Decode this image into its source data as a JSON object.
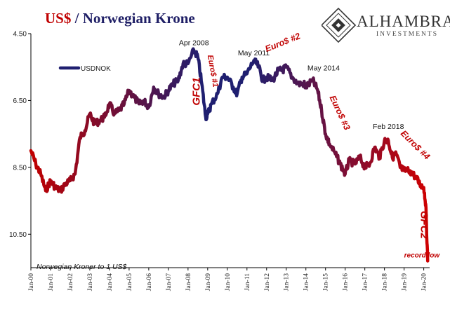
{
  "title": {
    "part1": "US$",
    "separator": " / ",
    "part2": "Norwegian Krone"
  },
  "logo": {
    "name": "ALHAMBRA",
    "sub": "INVESTMENTS",
    "icon": "alhambra-diamond-logo"
  },
  "colors": {
    "early": "#c00000",
    "peak": "#1f1f70",
    "late": "#d00000",
    "red_text": "#c00000"
  },
  "chart_data": {
    "type": "line",
    "ylabel": "",
    "xlabel": "",
    "y_inverted": true,
    "ylim": [
      4.5,
      11.5
    ],
    "y_ticks": [
      {
        "value": 4.5,
        "label": "4.50"
      },
      {
        "value": 6.5,
        "label": "6.50"
      },
      {
        "value": 8.5,
        "label": "8.50"
      },
      {
        "value": 10.5,
        "label": "10.50"
      }
    ],
    "xlim": [
      2000.0,
      2020.3
    ],
    "x_ticks": [
      {
        "value": 2000,
        "label": "Jan-00"
      },
      {
        "value": 2001,
        "label": "Jan-01"
      },
      {
        "value": 2002,
        "label": "Jan-02"
      },
      {
        "value": 2003,
        "label": "Jan-03"
      },
      {
        "value": 2004,
        "label": "Jan-04"
      },
      {
        "value": 2005,
        "label": "Jan-05"
      },
      {
        "value": 2006,
        "label": "Jan-06"
      },
      {
        "value": 2007,
        "label": "Jan-07"
      },
      {
        "value": 2008,
        "label": "Jan-08"
      },
      {
        "value": 2009,
        "label": "Jan-09"
      },
      {
        "value": 2010,
        "label": "Jan-10"
      },
      {
        "value": 2011,
        "label": "Jan-11"
      },
      {
        "value": 2012,
        "label": "Jan-12"
      },
      {
        "value": 2013,
        "label": "Jan-13"
      },
      {
        "value": 2014,
        "label": "Jan-14"
      },
      {
        "value": 2015,
        "label": "Jan-15"
      },
      {
        "value": 2016,
        "label": "Jan-16"
      },
      {
        "value": 2017,
        "label": "Jan-17"
      },
      {
        "value": 2018,
        "label": "Jan-18"
      },
      {
        "value": 2019,
        "label": "Jan-19"
      },
      {
        "value": 2020,
        "label": "Jan-20"
      }
    ],
    "grid": false,
    "legend": {
      "label": "USDNOK",
      "placement": "top-left"
    },
    "note": "Norwegian Kroner to 1 US$",
    "series": [
      {
        "name": "USDNOK",
        "points": [
          [
            2000.0,
            8.0
          ],
          [
            2000.25,
            8.4
          ],
          [
            2000.5,
            8.7
          ],
          [
            2000.75,
            9.2
          ],
          [
            2001.0,
            8.9
          ],
          [
            2001.25,
            9.1
          ],
          [
            2001.5,
            9.2
          ],
          [
            2001.75,
            9.0
          ],
          [
            2002.0,
            8.9
          ],
          [
            2002.25,
            8.7
          ],
          [
            2002.5,
            7.6
          ],
          [
            2002.75,
            7.4
          ],
          [
            2003.0,
            6.9
          ],
          [
            2003.25,
            7.2
          ],
          [
            2003.5,
            7.1
          ],
          [
            2003.75,
            7.0
          ],
          [
            2004.0,
            6.6
          ],
          [
            2004.25,
            6.9
          ],
          [
            2004.5,
            6.8
          ],
          [
            2004.75,
            6.6
          ],
          [
            2005.0,
            6.2
          ],
          [
            2005.25,
            6.4
          ],
          [
            2005.5,
            6.6
          ],
          [
            2005.75,
            6.5
          ],
          [
            2006.0,
            6.7
          ],
          [
            2006.25,
            6.1
          ],
          [
            2006.5,
            6.3
          ],
          [
            2006.75,
            6.4
          ],
          [
            2007.0,
            6.2
          ],
          [
            2007.25,
            6.0
          ],
          [
            2007.5,
            5.9
          ],
          [
            2007.75,
            5.4
          ],
          [
            2008.0,
            5.4
          ],
          [
            2008.3,
            5.0
          ],
          [
            2008.5,
            5.2
          ],
          [
            2008.7,
            6.0
          ],
          [
            2008.9,
            7.0
          ],
          [
            2009.0,
            6.9
          ],
          [
            2009.2,
            6.6
          ],
          [
            2009.5,
            6.3
          ],
          [
            2009.75,
            5.8
          ],
          [
            2010.0,
            5.8
          ],
          [
            2010.3,
            6.1
          ],
          [
            2010.5,
            6.3
          ],
          [
            2010.75,
            5.8
          ],
          [
            2011.0,
            5.7
          ],
          [
            2011.35,
            5.3
          ],
          [
            2011.6,
            5.5
          ],
          [
            2011.8,
            5.9
          ],
          [
            2012.0,
            5.8
          ],
          [
            2012.3,
            5.9
          ],
          [
            2012.6,
            5.6
          ],
          [
            2012.8,
            5.6
          ],
          [
            2013.0,
            5.5
          ],
          [
            2013.3,
            5.8
          ],
          [
            2013.6,
            6.0
          ],
          [
            2013.9,
            6.0
          ],
          [
            2014.0,
            6.1
          ],
          [
            2014.35,
            5.9
          ],
          [
            2014.6,
            6.2
          ],
          [
            2014.8,
            6.8
          ],
          [
            2015.0,
            7.5
          ],
          [
            2015.2,
            7.8
          ],
          [
            2015.5,
            8.1
          ],
          [
            2015.75,
            8.4
          ],
          [
            2016.0,
            8.7
          ],
          [
            2016.2,
            8.3
          ],
          [
            2016.5,
            8.4
          ],
          [
            2016.75,
            8.2
          ],
          [
            2017.0,
            8.5
          ],
          [
            2017.25,
            8.4
          ],
          [
            2017.5,
            7.9
          ],
          [
            2017.75,
            8.2
          ],
          [
            2018.0,
            7.7
          ],
          [
            2018.2,
            7.7
          ],
          [
            2018.4,
            8.2
          ],
          [
            2018.6,
            8.1
          ],
          [
            2018.8,
            8.5
          ],
          [
            2019.0,
            8.6
          ],
          [
            2019.3,
            8.6
          ],
          [
            2019.6,
            8.8
          ],
          [
            2019.8,
            9.0
          ],
          [
            2020.0,
            9.1
          ],
          [
            2020.1,
            9.6
          ],
          [
            2020.2,
            11.3
          ]
        ]
      }
    ],
    "annotations_black": [
      {
        "text": "Apr 2008",
        "x": 2008.3,
        "y": 4.85
      },
      {
        "text": "May 2011",
        "x": 2011.35,
        "y": 5.15
      },
      {
        "text": "May 2014",
        "x": 2014.9,
        "y": 5.6
      },
      {
        "text": "Feb 2018",
        "x": 2018.2,
        "y": 7.35
      }
    ],
    "annotations_red": [
      {
        "text": "Euro$ #1",
        "x": 2009.0,
        "y": 5.15,
        "rotate": 80,
        "size": 11
      },
      {
        "text": "GFC1",
        "x": 2008.6,
        "y": 6.65,
        "rotate": -90,
        "size": 15
      },
      {
        "text": "Euro$ #2",
        "x": 2012.0,
        "y": 5.05,
        "rotate": -22,
        "size": 12.5
      },
      {
        "text": "Euro$ #3",
        "x": 2015.2,
        "y": 6.4,
        "rotate": 65,
        "size": 12.5
      },
      {
        "text": "Euro$ #4",
        "x": 2018.8,
        "y": 7.5,
        "rotate": 45,
        "size": 12.5
      },
      {
        "text": "GFC2",
        "x": 2019.85,
        "y": 9.8,
        "rotate": 90,
        "size": 15
      },
      {
        "text": "record low",
        "x": 2019.0,
        "y": 11.2,
        "rotate": 0,
        "size": 10
      }
    ]
  }
}
